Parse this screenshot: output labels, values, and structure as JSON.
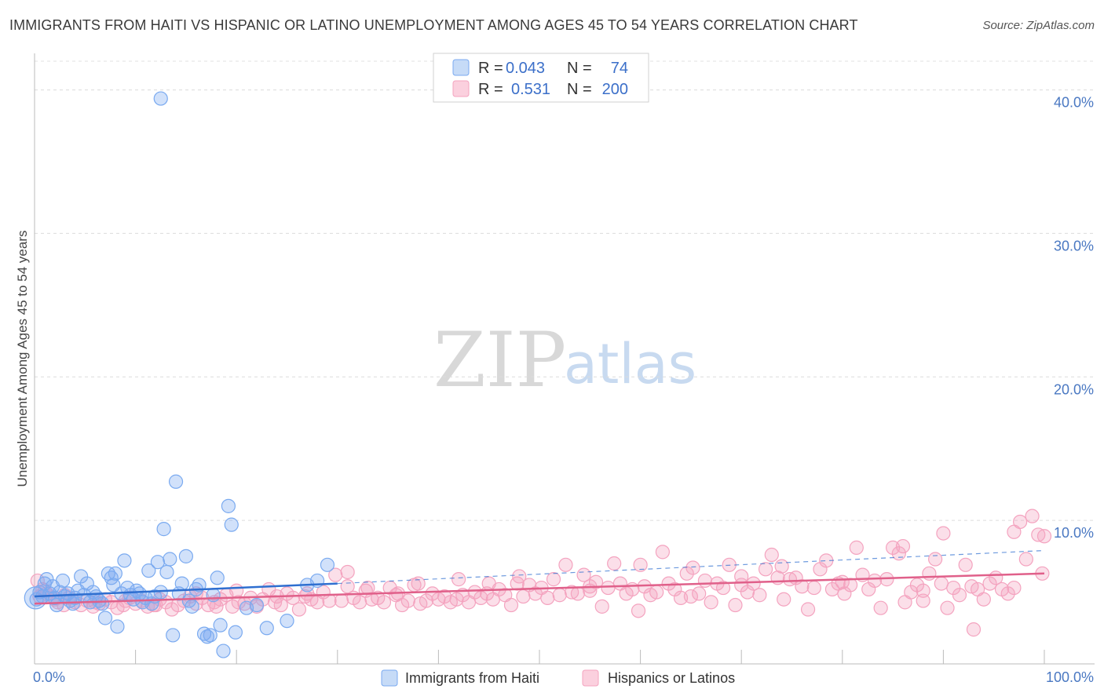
{
  "title": "IMMIGRANTS FROM HAITI VS HISPANIC OR LATINO UNEMPLOYMENT AMONG AGES 45 TO 54 YEARS CORRELATION CHART",
  "source": "Source: ZipAtlas.com",
  "watermark": {
    "zip": "ZIP",
    "atlas": "atlas"
  },
  "legend": {
    "rows": [
      {
        "r_label": "R =",
        "r_value": "0.043",
        "n_label": "N =",
        "n_value": "74"
      },
      {
        "r_label": "R =",
        "r_value": "0.531",
        "n_label": "N =",
        "n_value": "200"
      }
    ]
  },
  "chart_data": {
    "type": "scatter",
    "title": "IMMIGRANTS FROM HAITI VS HISPANIC OR LATINO UNEMPLOYMENT AMONG AGES 45 TO 54 YEARS CORRELATION CHART",
    "xlabel": "",
    "ylabel": "Unemployment Among Ages 45 to 54 years",
    "xlim": [
      0,
      100
    ],
    "ylim": [
      0,
      42
    ],
    "x_tick_labels": [
      "0.0%",
      "100.0%"
    ],
    "y_ticks": [
      10,
      20,
      30,
      40
    ],
    "y_tick_labels": [
      "10.0%",
      "20.0%",
      "30.0%",
      "40.0%"
    ],
    "colors": {
      "haiti": "#7aaaf0",
      "haiti_line": "#2f6fd0",
      "hispanic": "#f4a3bf",
      "hispanic_line": "#e0608a"
    },
    "series": [
      {
        "name": "Immigrants from Haiti",
        "R": 0.043,
        "N": 74,
        "trend": {
          "x0": 0,
          "y0": 4.7,
          "x1": 30,
          "y1": 5.6,
          "dash_to_x": 100,
          "dash_to_y": 7.9
        },
        "points": [
          [
            0.2,
            4.5
          ],
          [
            0.5,
            5.0
          ],
          [
            0.8,
            4.7
          ],
          [
            1.0,
            5.6
          ],
          [
            1.2,
            5.9
          ],
          [
            1.5,
            4.9
          ],
          [
            1.8,
            5.4
          ],
          [
            2.0,
            4.6
          ],
          [
            2.2,
            4.1
          ],
          [
            2.5,
            5.0
          ],
          [
            2.8,
            5.8
          ],
          [
            3.0,
            4.7
          ],
          [
            3.3,
            4.9
          ],
          [
            3.5,
            4.4
          ],
          [
            3.8,
            4.2
          ],
          [
            4.0,
            4.6
          ],
          [
            4.3,
            5.1
          ],
          [
            4.6,
            6.1
          ],
          [
            4.9,
            4.8
          ],
          [
            5.2,
            5.6
          ],
          [
            5.5,
            4.3
          ],
          [
            5.8,
            5.0
          ],
          [
            6.1,
            4.7
          ],
          [
            6.4,
            4.4
          ],
          [
            6.7,
            4.2
          ],
          [
            7.0,
            3.2
          ],
          [
            7.3,
            6.3
          ],
          [
            7.6,
            6.0
          ],
          [
            7.8,
            5.5
          ],
          [
            8.0,
            6.3
          ],
          [
            8.2,
            2.6
          ],
          [
            8.6,
            4.9
          ],
          [
            8.9,
            7.2
          ],
          [
            9.2,
            5.3
          ],
          [
            9.5,
            4.8
          ],
          [
            9.8,
            4.5
          ],
          [
            10.1,
            5.1
          ],
          [
            10.4,
            4.9
          ],
          [
            10.7,
            4.3
          ],
          [
            11.0,
            4.6
          ],
          [
            11.3,
            6.5
          ],
          [
            11.6,
            4.2
          ],
          [
            11.9,
            4.7
          ],
          [
            12.2,
            7.1
          ],
          [
            12.5,
            5.0
          ],
          [
            12.8,
            9.4
          ],
          [
            13.1,
            6.4
          ],
          [
            13.4,
            7.3
          ],
          [
            13.7,
            2.0
          ],
          [
            14.0,
            12.7
          ],
          [
            14.3,
            4.9
          ],
          [
            14.6,
            5.6
          ],
          [
            15.0,
            7.5
          ],
          [
            15.3,
            4.4
          ],
          [
            15.6,
            4.0
          ],
          [
            16.0,
            5.2
          ],
          [
            16.3,
            5.5
          ],
          [
            16.8,
            2.1
          ],
          [
            17.1,
            1.9
          ],
          [
            17.4,
            2.0
          ],
          [
            17.7,
            4.8
          ],
          [
            18.1,
            6.0
          ],
          [
            18.4,
            2.7
          ],
          [
            18.7,
            0.9
          ],
          [
            19.2,
            11.0
          ],
          [
            19.5,
            9.7
          ],
          [
            19.9,
            2.2
          ],
          [
            21.0,
            3.9
          ],
          [
            22.0,
            4.1
          ],
          [
            23.0,
            2.5
          ],
          [
            25.0,
            3.0
          ],
          [
            27.0,
            5.5
          ],
          [
            28.0,
            5.8
          ],
          [
            29.0,
            6.9
          ],
          [
            12.5,
            39.4
          ]
        ]
      },
      {
        "name": "Hispanics or Latinos",
        "R": 0.531,
        "N": 200,
        "trend": {
          "x0": 0,
          "y0": 4.2,
          "x1": 100,
          "y1": 6.3
        },
        "points": [
          [
            0.3,
            5.8
          ],
          [
            0.8,
            5.2
          ],
          [
            1.2,
            4.9
          ],
          [
            1.8,
            4.6
          ],
          [
            2.3,
            4.3
          ],
          [
            2.9,
            4.1
          ],
          [
            3.4,
            4.6
          ],
          [
            4.0,
            4.3
          ],
          [
            4.6,
            4.1
          ],
          [
            5.2,
            4.4
          ],
          [
            5.8,
            4.0
          ],
          [
            6.4,
            4.2
          ],
          [
            7.0,
            4.5
          ],
          [
            7.6,
            4.3
          ],
          [
            8.2,
            3.9
          ],
          [
            8.8,
            4.1
          ],
          [
            9.4,
            4.6
          ],
          [
            10.0,
            4.2
          ],
          [
            10.6,
            4.4
          ],
          [
            11.2,
            4.0
          ],
          [
            11.8,
            4.1
          ],
          [
            12.4,
            4.5
          ],
          [
            13.0,
            4.3
          ],
          [
            13.6,
            3.8
          ],
          [
            14.2,
            4.1
          ],
          [
            14.8,
            4.4
          ],
          [
            15.4,
            4.7
          ],
          [
            16.0,
            4.2
          ],
          [
            16.6,
            4.6
          ],
          [
            17.2,
            4.1
          ],
          [
            17.8,
            4.3
          ],
          [
            18.4,
            4.5
          ],
          [
            19.0,
            4.8
          ],
          [
            19.6,
            4.0
          ],
          [
            20.2,
            4.3
          ],
          [
            20.8,
            4.2
          ],
          [
            21.4,
            4.6
          ],
          [
            22.0,
            4.0
          ],
          [
            22.6,
            4.5
          ],
          [
            23.2,
            5.2
          ],
          [
            23.8,
            4.3
          ],
          [
            24.4,
            4.1
          ],
          [
            25.0,
            4.9
          ],
          [
            25.6,
            4.6
          ],
          [
            26.2,
            3.8
          ],
          [
            26.8,
            4.7
          ],
          [
            27.4,
            4.5
          ],
          [
            28.0,
            4.3
          ],
          [
            28.6,
            5.0
          ],
          [
            29.2,
            4.4
          ],
          [
            29.8,
            6.2
          ],
          [
            30.4,
            4.4
          ],
          [
            31.0,
            5.4
          ],
          [
            31.6,
            4.6
          ],
          [
            32.2,
            4.3
          ],
          [
            32.8,
            5.1
          ],
          [
            33.4,
            4.5
          ],
          [
            34.0,
            4.6
          ],
          [
            34.6,
            4.3
          ],
          [
            35.2,
            5.3
          ],
          [
            35.8,
            4.8
          ],
          [
            36.4,
            4.1
          ],
          [
            37.0,
            4.4
          ],
          [
            37.6,
            5.5
          ],
          [
            38.2,
            4.2
          ],
          [
            38.8,
            4.4
          ],
          [
            39.4,
            4.9
          ],
          [
            40.0,
            4.5
          ],
          [
            40.6,
            4.7
          ],
          [
            41.2,
            4.3
          ],
          [
            41.8,
            4.5
          ],
          [
            42.4,
            4.8
          ],
          [
            43.0,
            4.3
          ],
          [
            43.6,
            5.0
          ],
          [
            44.2,
            4.6
          ],
          [
            44.8,
            4.9
          ],
          [
            45.4,
            4.5
          ],
          [
            46.0,
            5.2
          ],
          [
            46.6,
            4.8
          ],
          [
            47.2,
            4.1
          ],
          [
            47.8,
            5.6
          ],
          [
            48.4,
            4.7
          ],
          [
            49.0,
            5.5
          ],
          [
            49.6,
            4.9
          ],
          [
            50.2,
            5.3
          ],
          [
            50.8,
            4.6
          ],
          [
            51.4,
            5.9
          ],
          [
            52.0,
            4.8
          ],
          [
            52.6,
            6.9
          ],
          [
            53.2,
            5.0
          ],
          [
            53.8,
            4.9
          ],
          [
            54.4,
            6.2
          ],
          [
            55.0,
            5.4
          ],
          [
            55.6,
            5.7
          ],
          [
            56.2,
            4.0
          ],
          [
            56.8,
            5.3
          ],
          [
            57.4,
            7.0
          ],
          [
            58.0,
            5.6
          ],
          [
            58.6,
            4.9
          ],
          [
            59.2,
            5.2
          ],
          [
            59.8,
            3.7
          ],
          [
            60.4,
            5.4
          ],
          [
            61.0,
            4.8
          ],
          [
            61.6,
            5.0
          ],
          [
            62.2,
            7.8
          ],
          [
            62.8,
            5.6
          ],
          [
            63.4,
            5.2
          ],
          [
            64.0,
            4.6
          ],
          [
            64.6,
            6.3
          ],
          [
            65.2,
            6.7
          ],
          [
            65.8,
            4.9
          ],
          [
            66.4,
            5.8
          ],
          [
            67.0,
            4.3
          ],
          [
            67.6,
            5.6
          ],
          [
            68.2,
            5.3
          ],
          [
            68.8,
            6.9
          ],
          [
            69.4,
            4.1
          ],
          [
            70.0,
            5.5
          ],
          [
            70.6,
            5.0
          ],
          [
            71.2,
            5.6
          ],
          [
            71.8,
            4.8
          ],
          [
            72.4,
            6.6
          ],
          [
            73.0,
            7.6
          ],
          [
            73.6,
            6.0
          ],
          [
            74.2,
            4.5
          ],
          [
            74.8,
            5.9
          ],
          [
            75.4,
            6.0
          ],
          [
            76.0,
            5.4
          ],
          [
            76.6,
            3.8
          ],
          [
            77.2,
            5.3
          ],
          [
            77.8,
            6.6
          ],
          [
            78.4,
            7.2
          ],
          [
            79.0,
            5.2
          ],
          [
            79.6,
            5.6
          ],
          [
            80.2,
            4.9
          ],
          [
            80.8,
            5.5
          ],
          [
            81.4,
            8.1
          ],
          [
            82.0,
            6.2
          ],
          [
            82.6,
            5.2
          ],
          [
            83.2,
            5.8
          ],
          [
            83.8,
            3.9
          ],
          [
            84.4,
            5.9
          ],
          [
            85.0,
            8.1
          ],
          [
            85.6,
            7.7
          ],
          [
            86.2,
            4.3
          ],
          [
            86.8,
            5.0
          ],
          [
            87.4,
            5.5
          ],
          [
            88.0,
            4.4
          ],
          [
            88.6,
            6.3
          ],
          [
            89.2,
            7.3
          ],
          [
            89.8,
            5.6
          ],
          [
            90.4,
            3.9
          ],
          [
            91.0,
            5.3
          ],
          [
            91.6,
            4.8
          ],
          [
            92.2,
            6.9
          ],
          [
            92.8,
            5.4
          ],
          [
            93.4,
            5.2
          ],
          [
            94.0,
            4.5
          ],
          [
            94.6,
            5.6
          ],
          [
            95.2,
            6.0
          ],
          [
            95.8,
            5.2
          ],
          [
            96.4,
            4.9
          ],
          [
            97.0,
            5.3
          ],
          [
            97.6,
            9.9
          ],
          [
            98.2,
            7.3
          ],
          [
            98.8,
            10.3
          ],
          [
            99.4,
            9.0
          ],
          [
            99.8,
            6.3
          ],
          [
            100.0,
            8.9
          ],
          [
            90.0,
            9.1
          ],
          [
            86.0,
            8.2
          ],
          [
            74.0,
            6.8
          ],
          [
            93.0,
            2.4
          ],
          [
            97.0,
            9.2
          ],
          [
            60.0,
            6.9
          ],
          [
            48.0,
            6.1
          ],
          [
            45.0,
            5.6
          ],
          [
            42.0,
            5.9
          ],
          [
            38.0,
            5.6
          ],
          [
            36.0,
            4.9
          ],
          [
            33.0,
            5.3
          ],
          [
            31.0,
            6.4
          ],
          [
            27.0,
            4.9
          ],
          [
            24.0,
            4.7
          ],
          [
            20.0,
            5.1
          ],
          [
            18.0,
            4.0
          ],
          [
            16.0,
            4.9
          ],
          [
            12.0,
            4.1
          ],
          [
            9.0,
            4.4
          ],
          [
            6.0,
            4.3
          ],
          [
            3.0,
            4.8
          ],
          [
            2.0,
            4.5
          ],
          [
            1.0,
            5.1
          ],
          [
            0.5,
            4.7
          ],
          [
            55.0,
            5.1
          ],
          [
            65.0,
            4.7
          ],
          [
            70.0,
            6.1
          ],
          [
            80.0,
            5.7
          ],
          [
            88.0,
            5.1
          ]
        ]
      }
    ]
  },
  "bottom_legend": [
    "Immigrants from Haiti",
    "Hispanics or Latinos"
  ]
}
